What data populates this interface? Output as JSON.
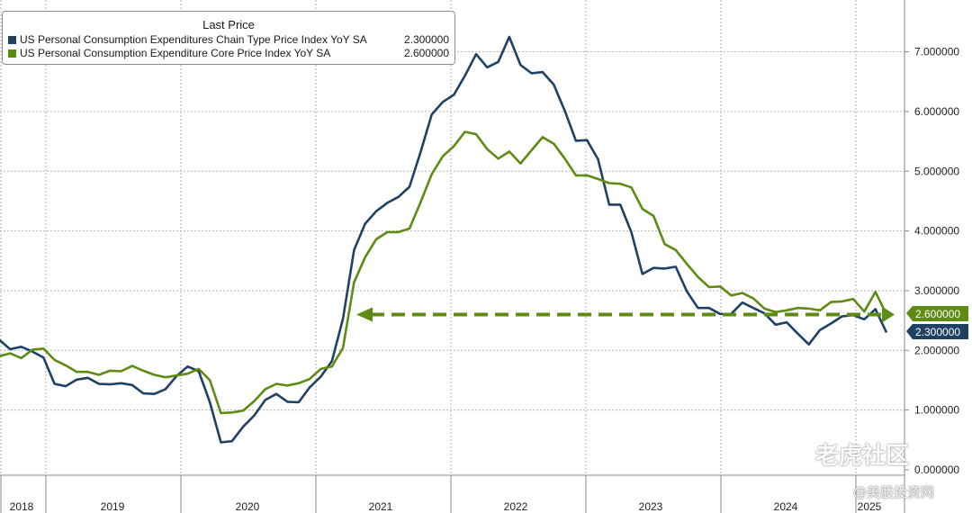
{
  "legend": {
    "title": "Last Price",
    "rows": [
      {
        "name": "US Personal Consumption Expenditures Chain Type Price Index YoY SA",
        "value": "2.300000",
        "color": "#1f4164"
      },
      {
        "name": "US Personal Consumption Expenditure Core Price Index YoY SA",
        "value": "2.600000",
        "color": "#5e8b12"
      }
    ]
  },
  "watermark": {
    "line1": "老虎社区",
    "line2": "@美股投资网"
  },
  "chart_data": {
    "type": "line",
    "ylim": [
      0,
      7.5
    ],
    "y_ticks": [
      "0.000000",
      "1.000000",
      "2.000000",
      "3.000000",
      "4.000000",
      "5.000000",
      "6.000000",
      "7.000000"
    ],
    "x_labels": [
      "2018",
      "2019",
      "2020",
      "2021",
      "2022",
      "2023",
      "2024",
      "2025"
    ],
    "grid": true,
    "legend_position": "top-left",
    "series": [
      {
        "name": "US Personal Consumption Expenditures Chain Type Price Index YoY SA",
        "color": "#1f4164",
        "last_label": "2.300000",
        "values": [
          2.18,
          2.02,
          2.06,
          1.98,
          1.88,
          1.44,
          1.4,
          1.51,
          1.54,
          1.44,
          1.43,
          1.45,
          1.42,
          1.28,
          1.27,
          1.35,
          1.57,
          1.73,
          1.65,
          1.13,
          0.46,
          0.48,
          0.72,
          0.91,
          1.17,
          1.27,
          1.14,
          1.13,
          1.38,
          1.56,
          1.82,
          2.53,
          3.68,
          4.12,
          4.33,
          4.47,
          4.57,
          4.74,
          5.32,
          5.95,
          6.16,
          6.28,
          6.6,
          6.96,
          6.74,
          6.83,
          7.25,
          6.78,
          6.64,
          6.66,
          6.45,
          6.01,
          5.51,
          5.52,
          5.2,
          4.44,
          4.44,
          3.98,
          3.28,
          3.38,
          3.37,
          3.4,
          2.99,
          2.71,
          2.71,
          2.61,
          2.61,
          2.8,
          2.71,
          2.62,
          2.43,
          2.47,
          2.28,
          2.1,
          2.34,
          2.45,
          2.57,
          2.59,
          2.52,
          2.69,
          2.3
        ]
      },
      {
        "name": "US Personal Consumption Expenditure Core Price Index YoY SA",
        "color": "#5e8b12",
        "last_label": "2.600000",
        "values": [
          1.9,
          1.95,
          1.87,
          2.01,
          2.03,
          1.84,
          1.75,
          1.64,
          1.64,
          1.59,
          1.66,
          1.65,
          1.74,
          1.66,
          1.59,
          1.55,
          1.58,
          1.61,
          1.69,
          1.5,
          0.95,
          0.96,
          0.99,
          1.15,
          1.35,
          1.44,
          1.41,
          1.45,
          1.52,
          1.69,
          1.73,
          2.04,
          3.14,
          3.56,
          3.86,
          3.98,
          3.98,
          4.04,
          4.48,
          4.95,
          5.25,
          5.42,
          5.66,
          5.62,
          5.37,
          5.21,
          5.33,
          5.13,
          5.35,
          5.57,
          5.46,
          5.21,
          4.93,
          4.93,
          4.87,
          4.8,
          4.79,
          4.73,
          4.37,
          4.25,
          3.78,
          3.68,
          3.45,
          3.23,
          3.06,
          3.07,
          2.92,
          2.96,
          2.87,
          2.7,
          2.64,
          2.67,
          2.71,
          2.7,
          2.67,
          2.81,
          2.82,
          2.86,
          2.65,
          2.98,
          2.6
        ]
      }
    ],
    "reference_line": {
      "value": 2.6,
      "color": "#5e8b12",
      "style": "dashed-arrow"
    }
  }
}
